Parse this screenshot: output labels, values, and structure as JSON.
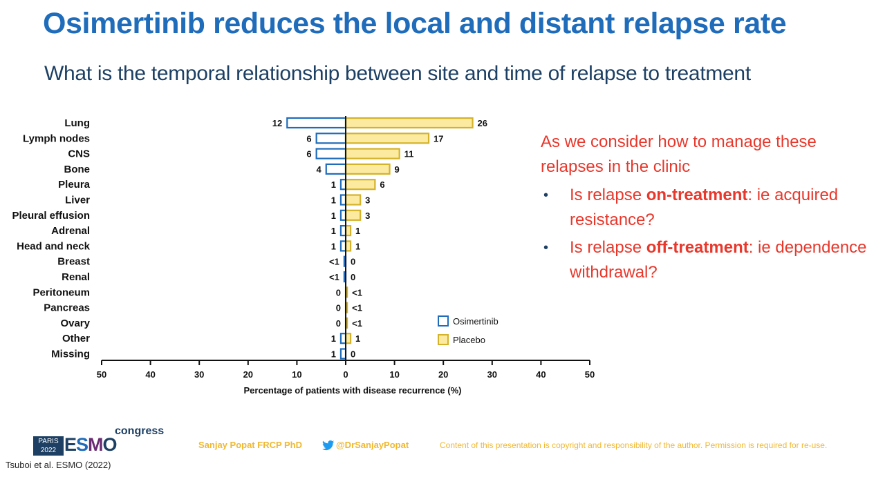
{
  "slide": {
    "title": "Osimertinib reduces the local and distant relapse rate",
    "subtitle": "What is the temporal relationship between site and time of relapse to treatment"
  },
  "chart_data": {
    "type": "bar",
    "orientation": "horizontal-diverging",
    "categories": [
      "Lung",
      "Lymph nodes",
      "CNS",
      "Bone",
      "Pleura",
      "Liver",
      "Pleural effusion",
      "Adrenal",
      "Head and neck",
      "Breast",
      "Renal",
      "Peritoneum",
      "Pancreas",
      "Ovary",
      "Other",
      "Missing"
    ],
    "series": [
      {
        "name": "Osimertinib",
        "side": "left",
        "color": "#1f6cbb",
        "fill": "#ffffff",
        "values": [
          12,
          6,
          6,
          4,
          1,
          1,
          1,
          1,
          1,
          0.3,
          0.3,
          0,
          0,
          0,
          1,
          1
        ],
        "labels": [
          "12",
          "6",
          "6",
          "4",
          "1",
          "1",
          "1",
          "1",
          "1",
          "<1",
          "<1",
          "0",
          "0",
          "0",
          "1",
          "1"
        ]
      },
      {
        "name": "Placebo",
        "side": "right",
        "color": "#d4b22a",
        "fill": "#fbeaa0",
        "values": [
          26,
          17,
          11,
          9,
          6,
          3,
          3,
          1,
          1,
          0,
          0,
          0.3,
          0.3,
          0.3,
          1,
          0
        ],
        "labels": [
          "26",
          "17",
          "11",
          "9",
          "6",
          "3",
          "3",
          "1",
          "1",
          "0",
          "0",
          "<1",
          "<1",
          "<1",
          "1",
          "0"
        ]
      }
    ],
    "x_ticks": [
      50,
      40,
      30,
      20,
      10,
      0,
      10,
      20,
      30,
      40,
      50
    ],
    "xlim": [
      -50,
      50
    ],
    "xlabel": "Percentage of patients with disease recurrence (%)",
    "ylabel": "",
    "grid": false,
    "legend_position": "bottom-right"
  },
  "callout": {
    "intro": "As we consider how to manage these relapses in the clinic",
    "bullet_symbol": "•",
    "bullets": [
      {
        "pre": "Is relapse ",
        "bold": "on-treatment",
        "post": ": ie acquired resistance?"
      },
      {
        "pre": "Is relapse ",
        "bold": "off-treatment",
        "post": ": ie dependence withdrawal?"
      }
    ]
  },
  "footer": {
    "logo_city": "PARIS",
    "logo_year": "2022",
    "logo_e": "E",
    "logo_s": "S",
    "logo_m": "M",
    "logo_o": "O",
    "logo_congress": "congress",
    "author": "Sanjay Popat FRCP PhD",
    "twitter": "@DrSanjayPopat",
    "copyright": "Content of this presentation is copyright and responsibility of the author. Permission is required for re-use.",
    "citation": "Tsuboi et al. ESMO (2022)"
  }
}
